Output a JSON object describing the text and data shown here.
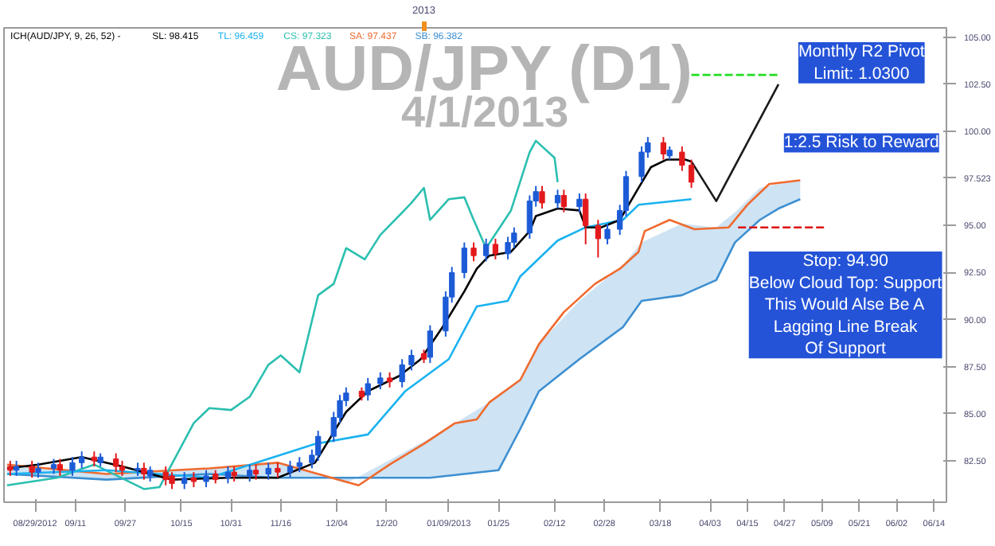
{
  "chart_data": {
    "type": "candlestick",
    "title": "AUD/JPY (D1)",
    "subtitle": "4/1/2013",
    "annotations": [
      "ICH(AUD/JPY, 9, 26, 52) -",
      "Monthly R2 Pivot\nLimit: 1.0300",
      "1:2.5 Risk to Reward",
      "Stop: 94.90\nBelow Cloud Top: Support\nThis Would Alse Be A\nLagging Line Break\nOf Support",
      {
        "text": "2013",
        "x": "2013-01-01"
      }
    ],
    "legend": "top left",
    "xlim": [
      "2012-08-19",
      "2013-06-18"
    ],
    "ylim": [
      80.3,
      105.5
    ],
    "xticks": [
      {
        "value": "2012-08-29",
        "label": "08/29/2012"
      },
      {
        "value": "2012-09-11",
        "label": "09/11"
      },
      {
        "value": "2012-09-27",
        "label": "09/27"
      },
      {
        "value": "2012-10-15",
        "label": "10/15"
      },
      {
        "value": "2012-10-31",
        "label": "10/31"
      },
      {
        "value": "2012-11-16",
        "label": "11/16"
      },
      {
        "value": "2012-12-04",
        "label": "12/04"
      },
      {
        "value": "2012-12-20",
        "label": "12/20"
      },
      {
        "value": "2013-01-09",
        "label": "01/09/2013"
      },
      {
        "value": "2013-01-25",
        "label": "01/25"
      },
      {
        "value": "2013-02-12",
        "label": "02/12"
      },
      {
        "value": "2013-02-28",
        "label": "02/28"
      },
      {
        "value": "2013-03-18",
        "label": "03/18"
      },
      {
        "value": "2013-04-03",
        "label": "04/03"
      },
      {
        "value": "2013-04-15",
        "label": "04/15"
      },
      {
        "value": "2013-04-27",
        "label": "04/27"
      },
      {
        "value": "2013-05-09",
        "label": "05/09"
      },
      {
        "value": "2013-05-21",
        "label": "05/21"
      },
      {
        "value": "2013-06-02",
        "label": "06/02"
      },
      {
        "value": "2013-06-14",
        "label": "06/14"
      }
    ],
    "yticks": [
      {
        "value": 82.5,
        "label": "82.50"
      },
      {
        "value": 85,
        "label": "85.00"
      },
      {
        "value": 87.5,
        "label": "87.50"
      },
      {
        "value": 90,
        "label": "90.00"
      },
      {
        "value": 92.5,
        "label": "92.50"
      },
      {
        "value": 95,
        "label": "95.00"
      },
      {
        "value": 97.523,
        "label": "97.523"
      },
      {
        "value": 100,
        "label": "100.00"
      },
      {
        "value": 102.5,
        "label": "102.50"
      },
      {
        "value": 105,
        "label": "105.00"
      }
    ],
    "series": [
      {
        "type": "line",
        "name": "SB: 96.382",
        "color": "#3d8fd1",
        "x": [
          "2012-08-20",
          "2012-09-21",
          "2012-10-24",
          "2012-11-15",
          "2012-12-07",
          "2013-01-03",
          "2013-01-25",
          "2013-02-01",
          "2013-02-07",
          "2013-02-20",
          "2013-03-06",
          "2013-03-12",
          "2013-03-25",
          "2013-04-05",
          "2013-04-11",
          "2013-04-19",
          "2013-04-25",
          "2013-05-02"
        ],
        "values": [
          81.8,
          81.5,
          81.8,
          81.6,
          81.6,
          81.6,
          82.0,
          84.2,
          86.2,
          87.9,
          89.6,
          91.0,
          91.3,
          92.1,
          94.1,
          95.3,
          95.9,
          96.4
        ],
        "lower": [
          81.8,
          81.5,
          81.8,
          81.6,
          81.6,
          81.6,
          82.0,
          84.2,
          86.2,
          87.9,
          89.6,
          91.0,
          91.3,
          92.1,
          94.1,
          95.3,
          95.9,
          96.4
        ],
        "upper": [
          82.3,
          81.8,
          82.1,
          82.4,
          81.3,
          83.7,
          85.9,
          86.8,
          88.7,
          91.0,
          92.9,
          94.1,
          95.1,
          94.9,
          95.7,
          97.0,
          97.2,
          97.4
        ]
      },
      {
        "type": "line",
        "name": "SA: 97.437",
        "color": "#f06a2e",
        "x": [
          "2012-08-20",
          "2012-09-21",
          "2012-10-24",
          "2012-11-15",
          "2012-12-11",
          "2012-12-21",
          "2013-01-01",
          "2013-01-11",
          "2013-01-18",
          "2013-01-22",
          "2013-02-01",
          "2013-02-07",
          "2013-02-15",
          "2013-02-25",
          "2013-03-05",
          "2013-03-11",
          "2013-03-13",
          "2013-03-21",
          "2013-03-29",
          "2013-04-09",
          "2013-04-15",
          "2013-04-22",
          "2013-05-02"
        ],
        "values": [
          82.3,
          81.8,
          82.1,
          82.4,
          81.2,
          82.3,
          83.4,
          84.5,
          84.7,
          85.6,
          86.8,
          88.7,
          90.4,
          91.9,
          92.7,
          93.6,
          94.7,
          95.3,
          94.8,
          94.9,
          96.1,
          97.2,
          97.4
        ]
      },
      {
        "type": "line",
        "name": "CS: 97.323",
        "color": "#2bbfb0",
        "x": [
          "2012-08-20",
          "2012-09-05",
          "2012-09-17",
          "2012-10-03",
          "2012-10-08",
          "2012-10-19",
          "2012-10-24",
          "2012-10-31",
          "2012-11-06",
          "2012-11-12",
          "2012-11-16",
          "2012-11-22",
          "2012-11-28",
          "2012-12-03",
          "2012-12-07",
          "2012-12-13",
          "2012-12-18",
          "2012-12-28",
          "2013-01-01",
          "2013-01-03",
          "2013-01-09",
          "2013-01-14",
          "2013-01-17",
          "2013-01-21",
          "2013-01-29",
          "2013-02-04",
          "2013-02-06",
          "2013-02-12",
          "2013-02-13"
        ],
        "values": [
          81.2,
          81.6,
          82.3,
          81.0,
          81.1,
          84.5,
          85.3,
          85.2,
          85.9,
          87.6,
          88.1,
          87.2,
          91.3,
          91.9,
          93.8,
          93.2,
          94.5,
          96.2,
          97.0,
          95.3,
          96.4,
          96.5,
          95.3,
          93.8,
          95.8,
          98.9,
          99.5,
          98.6,
          97.3
        ]
      },
      {
        "type": "line",
        "name": "TL: 96.459",
        "color": "#1ab2f0",
        "x": [
          "2012-08-20",
          "2012-09-21",
          "2012-10-24",
          "2012-11-27",
          "2012-12-14",
          "2012-12-26",
          "2013-01-09",
          "2013-01-18",
          "2013-01-28",
          "2013-02-01",
          "2013-02-13",
          "2013-02-22",
          "2013-03-06",
          "2013-03-11",
          "2013-03-28"
        ],
        "values": [
          81.8,
          82.0,
          81.6,
          83.4,
          83.9,
          86.2,
          87.9,
          90.7,
          91.0,
          92.3,
          94.2,
          94.9,
          95.3,
          96.1,
          96.4
        ]
      },
      {
        "type": "line",
        "name": "SL: 98.415",
        "color": "#000000",
        "x": [
          "2012-08-20",
          "2012-08-30",
          "2012-09-13",
          "2012-09-26",
          "2012-10-12",
          "2012-10-30",
          "2012-11-15",
          "2012-11-27",
          "2012-12-07",
          "2012-12-14",
          "2012-12-24",
          "2012-12-31",
          "2013-01-07",
          "2013-01-14",
          "2013-01-18",
          "2013-01-22",
          "2013-01-29",
          "2013-02-04",
          "2013-02-06",
          "2013-02-13",
          "2013-02-20",
          "2013-02-22",
          "2013-02-27",
          "2013-03-05",
          "2013-03-11",
          "2013-03-15",
          "2013-03-20",
          "2013-03-26",
          "2013-03-28"
        ],
        "values": [
          82.1,
          82.3,
          82.7,
          82.2,
          81.5,
          81.6,
          81.6,
          82.4,
          85.1,
          86.2,
          87.0,
          87.9,
          89.6,
          91.5,
          92.7,
          93.4,
          93.6,
          94.7,
          95.5,
          95.9,
          95.8,
          94.9,
          94.9,
          95.3,
          97.0,
          98.1,
          98.5,
          98.5,
          98.4
        ]
      },
      {
        "type": "line",
        "color": "#22dd22",
        "line_style": "dashed",
        "x": [
          "2013-03-28",
          "2013-04-25"
        ],
        "values": [
          103,
          103
        ]
      },
      {
        "type": "line",
        "color": "#dd1111",
        "line_style": "dashed",
        "x": [
          "2013-04-12",
          "2013-05-10"
        ],
        "values": [
          94.9,
          94.9
        ]
      },
      {
        "type": "line",
        "color": "#1a1a1a",
        "x": [
          "2013-03-28",
          "2013-04-05",
          "2013-04-25"
        ],
        "values": [
          98.4,
          96.3,
          102.5
        ]
      },
      {
        "x": [
          "2012-08-21",
          "2012-08-23",
          "2012-08-28",
          "2012-08-30",
          "2012-09-04",
          "2012-09-06",
          "2012-09-10",
          "2012-09-13",
          "2012-09-17",
          "2012-09-19",
          "2012-09-24",
          "2012-09-26",
          "2012-10-01",
          "2012-10-03",
          "2012-10-05",
          "2012-10-10",
          "2012-10-12",
          "2012-10-16",
          "2012-10-19",
          "2012-10-23",
          "2012-10-26",
          "2012-10-30",
          "2012-11-01",
          "2012-11-06",
          "2012-11-08",
          "2012-11-12",
          "2012-11-15",
          "2012-11-19",
          "2012-11-22",
          "2012-11-26",
          "2012-11-28",
          "2012-12-03",
          "2012-12-05",
          "2012-12-07",
          "2012-12-12",
          "2012-12-14",
          "2012-12-18",
          "2012-12-21",
          "2012-12-25",
          "2012-12-28",
          "2013-01-01",
          "2013-01-03",
          "2013-01-08",
          "2013-01-10",
          "2013-01-14",
          "2013-01-17",
          "2013-01-21",
          "2013-01-24",
          "2013-01-28",
          "2013-01-30",
          "2013-02-04",
          "2013-02-06",
          "2013-02-08",
          "2013-02-13",
          "2013-02-15",
          "2013-02-20",
          "2013-02-22",
          "2013-02-26",
          "2013-03-01",
          "2013-03-05",
          "2013-03-07",
          "2013-03-12",
          "2013-03-14",
          "2013-03-19",
          "2013-03-21",
          "2013-03-25",
          "2013-03-28"
        ],
        "ohlc": [
          [
            82.2,
            82.5,
            81.7,
            82.0
          ],
          [
            82.0,
            82.5,
            81.7,
            82.2
          ],
          [
            82.2,
            82.5,
            81.6,
            81.9
          ],
          [
            81.9,
            82.4,
            81.6,
            82.1
          ],
          [
            82.1,
            82.6,
            81.8,
            82.3
          ],
          [
            82.3,
            82.6,
            81.7,
            82.0
          ],
          [
            82.0,
            82.7,
            81.7,
            82.4
          ],
          [
            82.4,
            83.0,
            82.1,
            82.7
          ],
          [
            82.7,
            83.0,
            82.2,
            82.5
          ],
          [
            82.4,
            82.9,
            82.2,
            82.7
          ],
          [
            82.6,
            82.9,
            81.9,
            82.2
          ],
          [
            82.2,
            82.5,
            81.7,
            82.0
          ],
          [
            82.0,
            82.4,
            81.7,
            82.1
          ],
          [
            82.1,
            82.4,
            81.5,
            81.8
          ],
          [
            81.7,
            82.2,
            81.4,
            82.0
          ],
          [
            81.9,
            82.2,
            81.2,
            81.5
          ],
          [
            81.7,
            81.9,
            81.0,
            81.3
          ],
          [
            81.3,
            81.9,
            81.0,
            81.6
          ],
          [
            81.6,
            81.9,
            81.1,
            81.4
          ],
          [
            81.4,
            82.0,
            81.1,
            81.7
          ],
          [
            81.8,
            82.0,
            81.3,
            81.5
          ],
          [
            81.6,
            82.2,
            81.3,
            81.9
          ],
          [
            81.9,
            82.2,
            81.4,
            81.7
          ],
          [
            81.7,
            82.3,
            81.4,
            82.0
          ],
          [
            82.0,
            82.3,
            81.5,
            81.8
          ],
          [
            81.8,
            82.4,
            81.5,
            82.1
          ],
          [
            82.1,
            82.4,
            81.6,
            81.9
          ],
          [
            81.9,
            82.5,
            81.6,
            82.2
          ],
          [
            82.2,
            82.7,
            81.9,
            82.4
          ],
          [
            82.4,
            83.1,
            82.1,
            82.8
          ],
          [
            82.8,
            84.1,
            82.5,
            83.8
          ],
          [
            83.8,
            85.1,
            83.5,
            84.8
          ],
          [
            84.8,
            86.0,
            84.5,
            85.7
          ],
          [
            85.7,
            86.4,
            85.4,
            86.1
          ],
          [
            86.2,
            86.4,
            85.7,
            85.9
          ],
          [
            86.0,
            86.9,
            85.7,
            86.6
          ],
          [
            86.6,
            87.2,
            86.3,
            86.9
          ],
          [
            86.9,
            87.2,
            86.4,
            86.7
          ],
          [
            86.7,
            87.9,
            86.4,
            87.6
          ],
          [
            87.6,
            88.4,
            87.3,
            88.1
          ],
          [
            88.2,
            88.4,
            87.7,
            87.9
          ],
          [
            88.0,
            89.7,
            87.7,
            89.4
          ],
          [
            89.4,
            91.5,
            89.1,
            91.2
          ],
          [
            91.2,
            92.8,
            90.9,
            92.5
          ],
          [
            92.5,
            94.1,
            92.2,
            93.8
          ],
          [
            93.8,
            94.1,
            93.1,
            93.4
          ],
          [
            93.4,
            94.3,
            93.1,
            94.0
          ],
          [
            94.0,
            94.3,
            93.2,
            93.5
          ],
          [
            93.5,
            94.4,
            93.2,
            94.1
          ],
          [
            94.1,
            94.9,
            93.8,
            94.6
          ],
          [
            94.6,
            96.6,
            94.3,
            96.3
          ],
          [
            96.3,
            97.1,
            96.0,
            96.8
          ],
          [
            96.8,
            97.1,
            95.9,
            96.2
          ],
          [
            96.2,
            96.9,
            95.9,
            96.6
          ],
          [
            96.6,
            96.9,
            95.7,
            96.0
          ],
          [
            96.0,
            96.7,
            95.7,
            96.4
          ],
          [
            96.4,
            96.7,
            94.0,
            95.0
          ],
          [
            95.0,
            95.3,
            93.3,
            94.3
          ],
          [
            94.3,
            95.1,
            94.0,
            94.8
          ],
          [
            94.8,
            96.1,
            94.5,
            95.8
          ],
          [
            95.8,
            97.9,
            95.5,
            97.6
          ],
          [
            97.6,
            99.2,
            97.3,
            98.9
          ],
          [
            98.9,
            99.7,
            98.6,
            99.4
          ],
          [
            99.4,
            99.7,
            98.5,
            98.8
          ],
          [
            98.7,
            99.2,
            98.5,
            99.0
          ],
          [
            98.9,
            99.2,
            97.9,
            98.2
          ],
          [
            98.2,
            98.5,
            97.0,
            97.3
          ]
        ],
        "colors": [
          "#e31a1c",
          "#1c5bd6",
          "#e31a1c",
          "#1c5bd6",
          "#1c5bd6",
          "#e31a1c",
          "#1c5bd6",
          "#1c5bd6",
          "#e31a1c",
          "#1c5bd6",
          "#e31a1c",
          "#e31a1c",
          "#1c5bd6",
          "#e31a1c",
          "#1c5bd6",
          "#e31a1c",
          "#e31a1c",
          "#1c5bd6",
          "#e31a1c",
          "#1c5bd6",
          "#e31a1c",
          "#1c5bd6",
          "#e31a1c",
          "#1c5bd6",
          "#e31a1c",
          "#1c5bd6",
          "#e31a1c",
          "#1c5bd6",
          "#1c5bd6",
          "#1c5bd6",
          "#1c5bd6",
          "#1c5bd6",
          "#1c5bd6",
          "#1c5bd6",
          "#e31a1c",
          "#1c5bd6",
          "#1c5bd6",
          "#e31a1c",
          "#1c5bd6",
          "#1c5bd6",
          "#e31a1c",
          "#1c5bd6",
          "#1c5bd6",
          "#1c5bd6",
          "#1c5bd6",
          "#e31a1c",
          "#1c5bd6",
          "#e31a1c",
          "#1c5bd6",
          "#1c5bd6",
          "#1c5bd6",
          "#1c5bd6",
          "#e31a1c",
          "#1c5bd6",
          "#e31a1c",
          "#1c5bd6",
          "#e31a1c",
          "#e31a1c",
          "#1c5bd6",
          "#1c5bd6",
          "#1c5bd6",
          "#1c5bd6",
          "#1c5bd6",
          "#e31a1c",
          "#1c5bd6",
          "#e31a1c",
          "#e31a1c"
        ]
      }
    ]
  }
}
